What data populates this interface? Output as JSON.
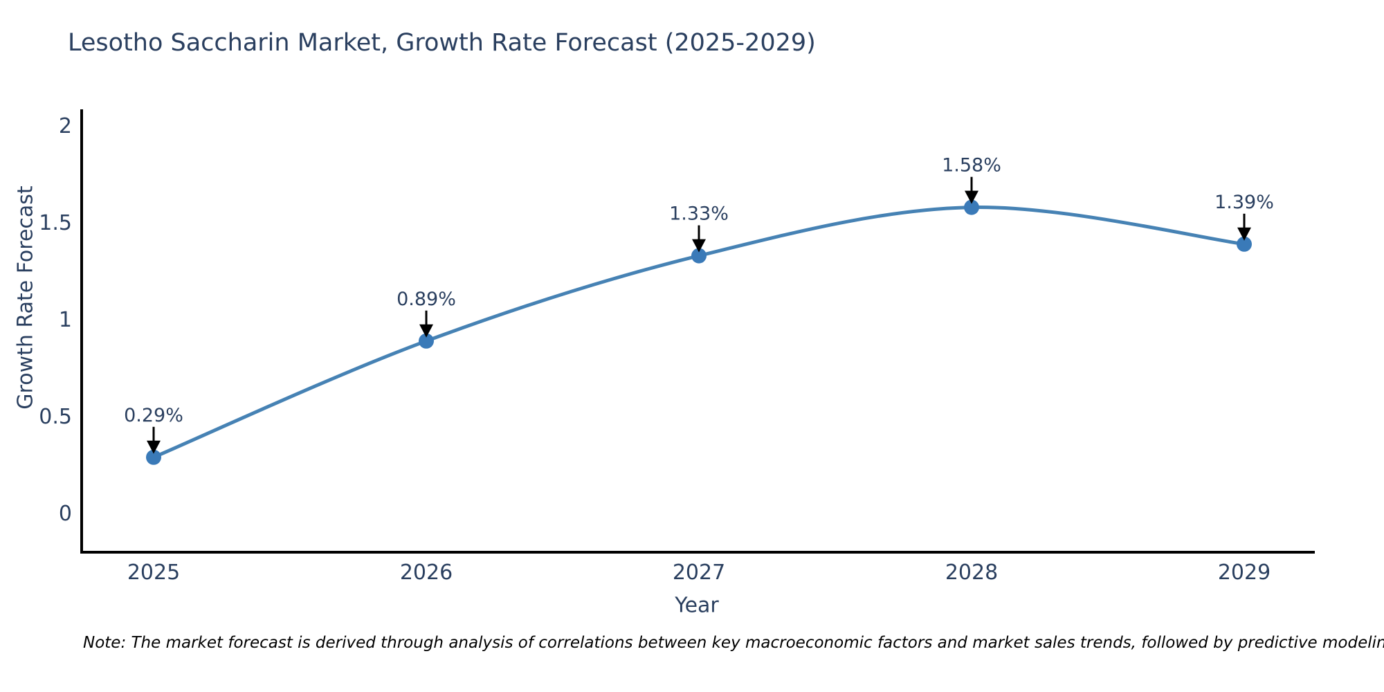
{
  "title": "Lesotho Saccharin Market, Growth Rate Forecast (2025-2029)",
  "note": "Note: The market forecast is derived through analysis of correlations between key macroeconomic factors and market sales trends, followed by predictive modeling to project future sales",
  "chart_data": {
    "type": "line",
    "title": "Lesotho Saccharin Market, Growth Rate Forecast (2025-2029)",
    "xlabel": "Year",
    "ylabel": "Growth Rate Forecast",
    "categories": [
      "2025",
      "2026",
      "2027",
      "2028",
      "2029"
    ],
    "x_values": [
      2025,
      2026,
      2027,
      2028,
      2029
    ],
    "values": [
      0.29,
      0.89,
      1.33,
      1.58,
      1.39
    ],
    "point_labels": [
      "0.29%",
      "0.89%",
      "1.33%",
      "1.58%",
      "1.39%"
    ],
    "ytick_values": [
      0,
      0.5,
      1,
      1.5,
      2
    ],
    "ytick_labels": [
      "0",
      "0.5",
      "1",
      "1.5",
      "2"
    ],
    "ylim": [
      0,
      2
    ],
    "grid": false,
    "legend": "none",
    "line_shape": "spline",
    "marker": "circle",
    "colors": {
      "line": "#4682b4",
      "marker": "#3a7ab8",
      "axis": "#000000",
      "tick_text": "#2a3f5f",
      "annotation_text": "#2a3f5f",
      "arrow": "#000000",
      "background": "#ffffff"
    }
  }
}
